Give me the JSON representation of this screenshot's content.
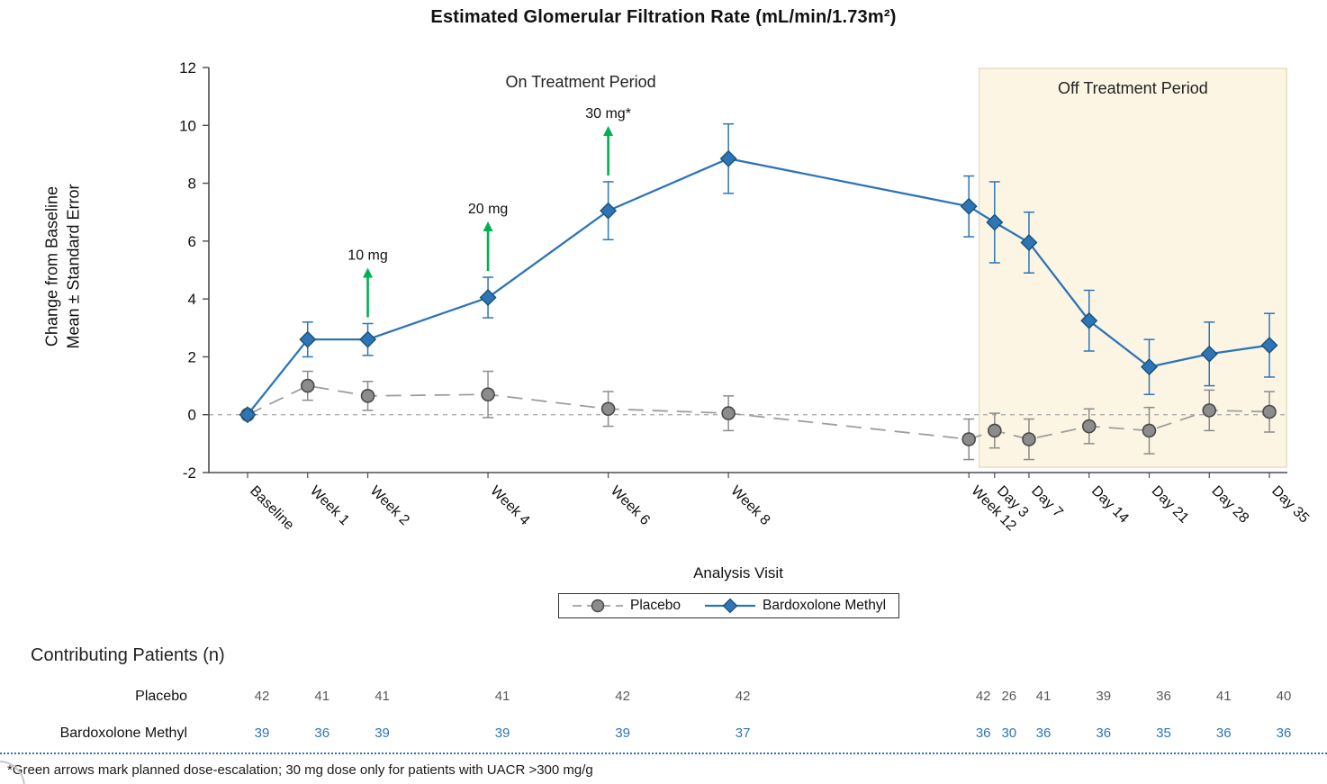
{
  "chart_data": {
    "type": "line",
    "title": "Estimated Glomerular Filtration Rate (mL/min/1.73m²)",
    "ylabel_line1": "Change from Baseline",
    "ylabel_line2": "Mean ± Standard Error",
    "xlabel": "Analysis Visit",
    "ylim": [
      -2,
      12
    ],
    "yticks": [
      -2,
      0,
      2,
      4,
      6,
      8,
      10,
      12
    ],
    "grid": "off",
    "legend_position": "bottom-center",
    "categories": [
      "Baseline",
      "Week 1",
      "Week 2",
      "Week 4",
      "Week 6",
      "Week 8",
      "Week 12",
      "Day 3",
      "Day 7",
      "Day 14",
      "Day 21",
      "Day 28",
      "Day 35"
    ],
    "x_days": [
      0,
      7,
      14,
      28,
      42,
      56,
      84,
      87,
      91,
      98,
      105,
      112,
      119
    ],
    "series": [
      {
        "name": "Placebo",
        "color": "#8C8C8C",
        "line_color": "#9E9E9E",
        "marker": "circle",
        "marker_fill": "#8C8C8C",
        "marker_stroke": "#4A4A4A",
        "line_style": "dashed",
        "values": [
          0,
          1.0,
          0.65,
          0.7,
          0.2,
          0.05,
          -0.85,
          -0.55,
          -0.85,
          -0.4,
          -0.55,
          0.15,
          0.1
        ],
        "errors": [
          0,
          0.5,
          0.5,
          0.8,
          0.6,
          0.6,
          0.7,
          0.6,
          0.7,
          0.6,
          0.8,
          0.7,
          0.7
        ]
      },
      {
        "name": "Bardoxolone Methyl",
        "color": "#2E75B6",
        "line_color": "#2E75B6",
        "marker": "diamond",
        "marker_fill": "#2E75B6",
        "marker_stroke": "#1A5276",
        "line_style": "solid",
        "values": [
          0,
          2.6,
          2.6,
          4.05,
          7.05,
          8.85,
          7.2,
          6.65,
          5.95,
          3.25,
          1.65,
          2.1,
          2.4
        ],
        "errors": [
          0,
          0.6,
          0.55,
          0.7,
          1.0,
          1.2,
          1.05,
          1.4,
          1.05,
          1.05,
          0.95,
          1.1,
          1.1
        ]
      }
    ],
    "annotations": {
      "on_treatment_label": "On Treatment Period",
      "on_treatment_x_day": 38.8,
      "off_treatment_region": {
        "label": "Off Treatment Period",
        "start_day": 85.2,
        "end_day": 121,
        "fill": "#FCF5E4",
        "border": "#E7DEC6"
      },
      "arrow_color": "#00B050",
      "dose_arrows": [
        {
          "label": "10 mg",
          "category": "Week 2"
        },
        {
          "label": "20 mg",
          "category": "Week 4"
        },
        {
          "label": "30 mg*",
          "category": "Week 6"
        }
      ]
    }
  },
  "patients_table": {
    "title": "Contributing Patients (n)",
    "rows": [
      {
        "label": "Placebo",
        "color": "#595959",
        "values": [
          42,
          41,
          41,
          41,
          42,
          42,
          42,
          26,
          41,
          39,
          36,
          41,
          40
        ]
      },
      {
        "label": "Bardoxolone Methyl",
        "color": "#2E75B6",
        "values": [
          39,
          36,
          39,
          39,
          39,
          37,
          36,
          30,
          36,
          36,
          35,
          36,
          36
        ]
      }
    ]
  },
  "footnote": "*Green arrows mark planned dose-escalation; 30 mg dose only for patients with UACR >300 mg/g",
  "colors": {
    "accent_blue": "#2E75B6",
    "gray": "#8C8C8C",
    "green_arrow": "#00B050",
    "off_region_fill": "#FCF5E4",
    "axis": "#4D4D4D",
    "separator_blue": "#2E75B6"
  }
}
